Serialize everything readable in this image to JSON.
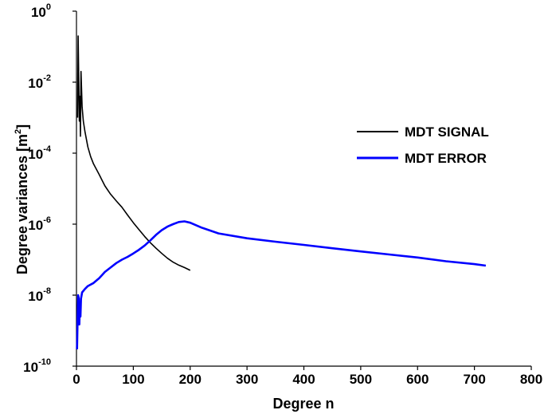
{
  "chart_data": {
    "type": "line",
    "xlabel": "Degree n",
    "ylabel_prefix": "Degree variances [m",
    "ylabel_sup": "2",
    "ylabel_suffix": "]",
    "xlim": [
      0,
      800
    ],
    "ylim": [
      1e-10,
      1
    ],
    "y_scale": "log",
    "x_ticks": [
      0,
      100,
      200,
      300,
      400,
      500,
      600,
      700,
      800
    ],
    "x_tick_labels": [
      "0",
      "100",
      "200",
      "300",
      "400",
      "500",
      "600",
      "700",
      "800"
    ],
    "y_ticks": [
      {
        "value": 1e-10,
        "base": "10",
        "exp": "-10"
      },
      {
        "value": 1e-08,
        "base": "10",
        "exp": "-8"
      },
      {
        "value": 1e-06,
        "base": "10",
        "exp": "-6"
      },
      {
        "value": 0.0001,
        "base": "10",
        "exp": "-4"
      },
      {
        "value": 0.01,
        "base": "10",
        "exp": "-2"
      },
      {
        "value": 1,
        "base": "10",
        "exp": "0"
      }
    ],
    "grid": false,
    "legend_position": "center-right",
    "series": [
      {
        "name": "MDT SIGNAL",
        "color": "#000000",
        "x": [
          2,
          3,
          4,
          5,
          6,
          7,
          8,
          10,
          12,
          15,
          20,
          25,
          30,
          40,
          50,
          60,
          70,
          80,
          90,
          100,
          110,
          120,
          130,
          140,
          150,
          160,
          170,
          180,
          190,
          200
        ],
        "y": [
          0.001,
          0.2,
          0.01,
          0.0008,
          0.004,
          0.0003,
          0.02,
          0.002,
          0.0008,
          0.0004,
          0.00015,
          8e-05,
          5e-05,
          2.5e-05,
          1.2e-05,
          7e-06,
          4.5e-06,
          3e-06,
          1.8e-06,
          1.1e-06,
          7e-07,
          4.5e-07,
          3e-07,
          2.1e-07,
          1.5e-07,
          1.1e-07,
          8.5e-08,
          7e-08,
          6e-08,
          5e-08
        ]
      },
      {
        "name": "MDT ERROR",
        "color": "#0000ff",
        "x": [
          1,
          2,
          3,
          4,
          5,
          6,
          7,
          8,
          10,
          15,
          20,
          30,
          40,
          50,
          60,
          70,
          80,
          90,
          100,
          110,
          120,
          130,
          140,
          150,
          160,
          170,
          180,
          190,
          200,
          220,
          250,
          300,
          350,
          400,
          450,
          500,
          550,
          600,
          650,
          700,
          720
        ],
        "y": [
          3e-10,
          2e-09,
          1e-08,
          8e-09,
          1.5e-09,
          6e-09,
          2.5e-09,
          8e-09,
          1.2e-08,
          1.5e-08,
          1.8e-08,
          2.2e-08,
          3e-08,
          4.5e-08,
          6e-08,
          8e-08,
          1e-07,
          1.2e-07,
          1.5e-07,
          1.9e-07,
          2.5e-07,
          3.5e-07,
          5e-07,
          6.8e-07,
          8.5e-07,
          1e-06,
          1.15e-06,
          1.2e-06,
          1.1e-06,
          8e-07,
          5.5e-07,
          4e-07,
          3.2e-07,
          2.6e-07,
          2.1e-07,
          1.7e-07,
          1.4e-07,
          1.15e-07,
          9e-08,
          7.5e-08,
          6.8e-08
        ]
      }
    ]
  }
}
